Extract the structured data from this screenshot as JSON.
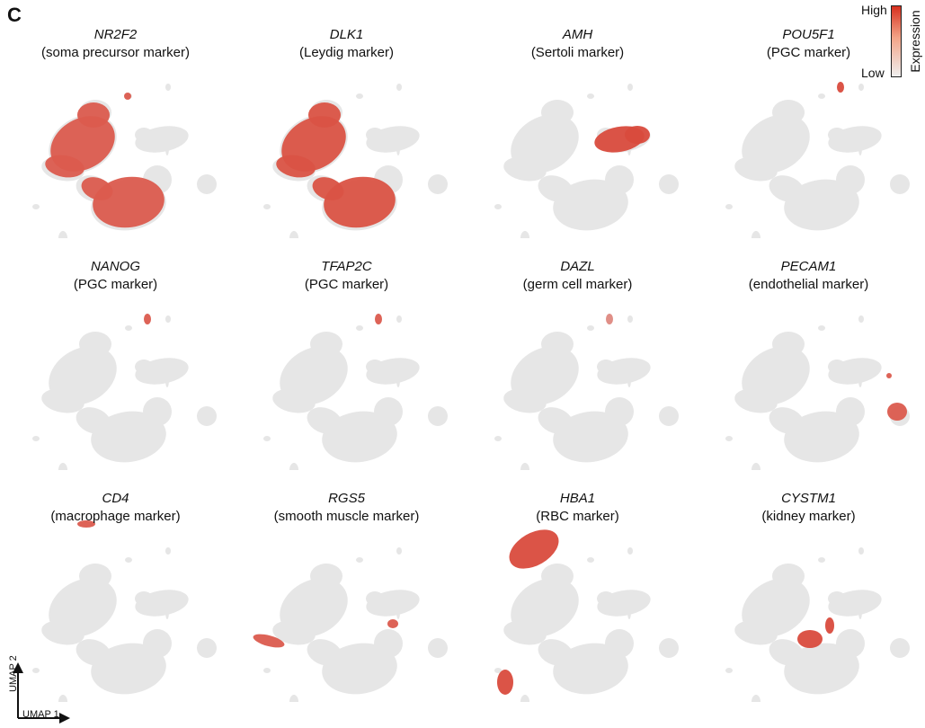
{
  "figure": {
    "panel_label": "C",
    "legend": {
      "high": "High",
      "low": "Low",
      "title": "Expression",
      "high_color": "#d7301f",
      "low_color": "#e6e6e6"
    },
    "axes": {
      "x_label": "UMAP 1",
      "y_label": "UMAP 2"
    },
    "panels": [
      {
        "gene": "NR2F2",
        "description": "(soma precursor marker)",
        "highlight": [
          "soma_left",
          "soma_lower",
          "tiny_top"
        ],
        "intensity": 0.9
      },
      {
        "gene": "DLK1",
        "description": "(Leydig marker)",
        "highlight": [
          "soma_left",
          "soma_lower"
        ],
        "intensity": 0.95
      },
      {
        "gene": "AMH",
        "description": "(Sertoli marker)",
        "highlight": [
          "sertoli"
        ],
        "intensity": 1.0
      },
      {
        "gene": "POU5F1",
        "description": "(PGC marker)",
        "highlight": [
          "pgc"
        ],
        "intensity": 1.0
      },
      {
        "gene": "NANOG",
        "description": "(PGC marker)",
        "highlight": [
          "pgc"
        ],
        "intensity": 0.9
      },
      {
        "gene": "TFAP2C",
        "description": "(PGC marker)",
        "highlight": [
          "pgc"
        ],
        "intensity": 0.9
      },
      {
        "gene": "DAZL",
        "description": "(germ cell marker)",
        "highlight": [
          "pgc"
        ],
        "intensity": 0.6
      },
      {
        "gene": "PECAM1",
        "description": "(endothelial marker)",
        "highlight": [
          "endothelial"
        ],
        "intensity": 0.9
      },
      {
        "gene": "CD4",
        "description": "(macrophage marker)",
        "highlight": [
          "macrophage"
        ],
        "intensity": 0.9
      },
      {
        "gene": "RGS5",
        "description": "(smooth muscle marker)",
        "highlight": [
          "smooth_muscle"
        ],
        "intensity": 0.9
      },
      {
        "gene": "HBA1",
        "description": "(RBC marker)",
        "highlight": [
          "rbc"
        ],
        "intensity": 1.0
      },
      {
        "gene": "CYSTM1",
        "description": "(kidney marker)",
        "highlight": [
          "kidney"
        ],
        "intensity": 1.0
      }
    ]
  }
}
